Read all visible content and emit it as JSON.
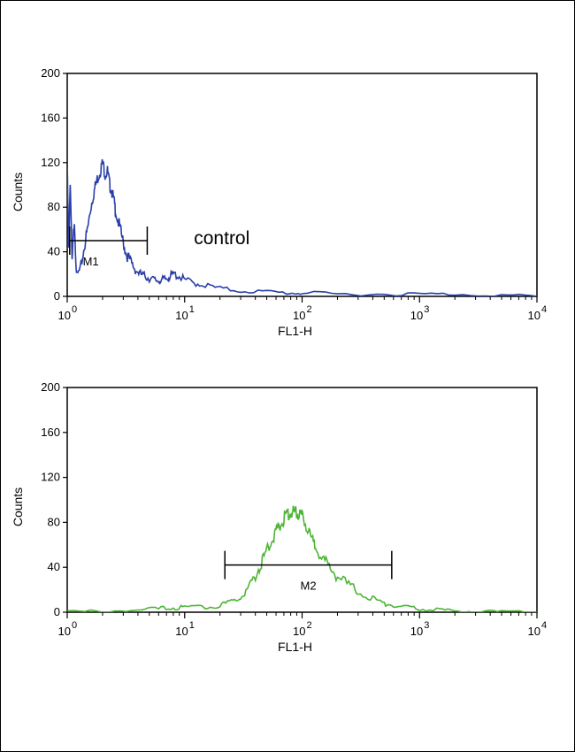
{
  "chart_data": [
    {
      "type": "line",
      "title": "",
      "xlabel": "FL1-H",
      "ylabel": "Counts",
      "x_scale": "log",
      "xlim": [
        1,
        10000
      ],
      "ylim": [
        0,
        200
      ],
      "x_ticks": [
        {
          "base": "10",
          "exp": "0"
        },
        {
          "base": "10",
          "exp": "1"
        },
        {
          "base": "10",
          "exp": "2"
        },
        {
          "base": "10",
          "exp": "3"
        },
        {
          "base": "10",
          "exp": "4"
        }
      ],
      "y_ticks": [
        "0",
        "40",
        "80",
        "120",
        "160",
        "200"
      ],
      "y_tick_values": [
        0,
        40,
        80,
        120,
        160,
        200
      ],
      "grid": false,
      "series": [
        {
          "color": "#2a3fa8",
          "x": [
            1.0,
            1.03,
            1.06,
            1.1,
            1.15,
            1.2,
            1.3,
            1.4,
            1.5,
            1.6,
            1.7,
            1.8,
            1.9,
            2.0,
            2.1,
            2.2,
            2.3,
            2.4,
            2.5,
            2.6,
            2.8,
            3.0,
            3.2,
            3.5,
            3.8,
            4.2,
            4.6,
            5.0,
            5.5,
            6.0,
            6.5,
            7.0,
            7.5,
            8.0,
            9.0,
            10.0,
            12,
            15,
            20,
            30,
            50,
            80,
            100,
            200,
            500,
            1000,
            2000,
            5000,
            10000
          ],
          "values": [
            115,
            40,
            105,
            30,
            70,
            18,
            25,
            45,
            62,
            82,
            95,
            105,
            112,
            120,
            110,
            112,
            100,
            95,
            85,
            75,
            62,
            48,
            38,
            30,
            24,
            20,
            18,
            16,
            15,
            14,
            15,
            16,
            18,
            20,
            18,
            15,
            12,
            10,
            7,
            5,
            4,
            3,
            3,
            2,
            2,
            2,
            2,
            1,
            0
          ]
        }
      ],
      "markers": [
        {
          "label": "M1",
          "x_start": 1.05,
          "x_end": 4.8,
          "y": 50
        }
      ],
      "annotations": [
        {
          "text": "control",
          "x": 12,
          "y": 50
        }
      ]
    },
    {
      "type": "line",
      "title": "",
      "xlabel": "FL1-H",
      "ylabel": "Counts",
      "x_scale": "log",
      "xlim": [
        1,
        10000
      ],
      "ylim": [
        0,
        200
      ],
      "x_ticks": [
        {
          "base": "10",
          "exp": "0"
        },
        {
          "base": "10",
          "exp": "1"
        },
        {
          "base": "10",
          "exp": "2"
        },
        {
          "base": "10",
          "exp": "3"
        },
        {
          "base": "10",
          "exp": "4"
        }
      ],
      "y_ticks": [
        "0",
        "40",
        "80",
        "120",
        "160",
        "200"
      ],
      "y_tick_values": [
        0,
        40,
        80,
        120,
        160,
        200
      ],
      "grid": false,
      "series": [
        {
          "color": "#4db535",
          "x": [
            1.0,
            2.0,
            4.0,
            6.0,
            8.0,
            10.0,
            15,
            20,
            25,
            30,
            35,
            40,
            45,
            50,
            55,
            60,
            65,
            70,
            75,
            80,
            85,
            90,
            95,
            100,
            110,
            120,
            130,
            150,
            170,
            200,
            250,
            300,
            400,
            500,
            600,
            800,
            1000,
            1500,
            2000,
            3000,
            5000,
            10000
          ],
          "values": [
            0,
            1,
            2,
            3,
            4,
            4,
            5,
            6,
            9,
            14,
            22,
            32,
            44,
            55,
            64,
            72,
            78,
            83,
            87,
            89,
            90,
            88,
            87,
            85,
            75,
            66,
            58,
            48,
            40,
            32,
            24,
            18,
            12,
            8,
            6,
            4,
            3,
            2,
            1,
            1,
            0,
            0
          ]
        }
      ],
      "markers": [
        {
          "label": "M2",
          "x_start": 22,
          "x_end": 580,
          "y": 42
        }
      ],
      "annotations": []
    }
  ]
}
